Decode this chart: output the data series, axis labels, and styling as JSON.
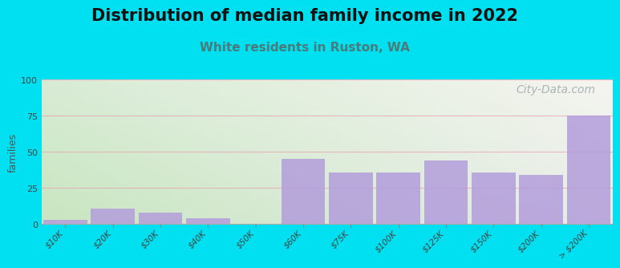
{
  "title": "Distribution of median family income in 2022",
  "subtitle": "White residents in Ruston, WA",
  "ylabel": "families",
  "categories": [
    "$10K",
    "$20K",
    "$30K",
    "$40K",
    "$50K",
    "$60K",
    "$75K",
    "$100K",
    "$125K",
    "$150K",
    "$200K",
    "> $200K"
  ],
  "values": [
    3,
    11,
    8,
    4,
    0,
    45,
    36,
    36,
    44,
    36,
    34,
    75
  ],
  "bar_color": "#b39ddb",
  "ylim": [
    0,
    100
  ],
  "yticks": [
    0,
    25,
    50,
    75,
    100
  ],
  "background_outer": "#00e0f0",
  "bg_color_topleft": "#d4ecd4",
  "bg_color_topright": "#f0f0f0",
  "bg_color_bottomleft": "#c8e8c0",
  "bg_color_bottomright": "#e8eee8",
  "grid_color": "#e8a0b0",
  "grid_alpha": 0.7,
  "title_fontsize": 15,
  "subtitle_fontsize": 11,
  "subtitle_color": "#4a7a7a",
  "ylabel_fontsize": 9,
  "watermark": "City-Data.com",
  "watermark_color": "#a0aab0",
  "watermark_fontsize": 10
}
